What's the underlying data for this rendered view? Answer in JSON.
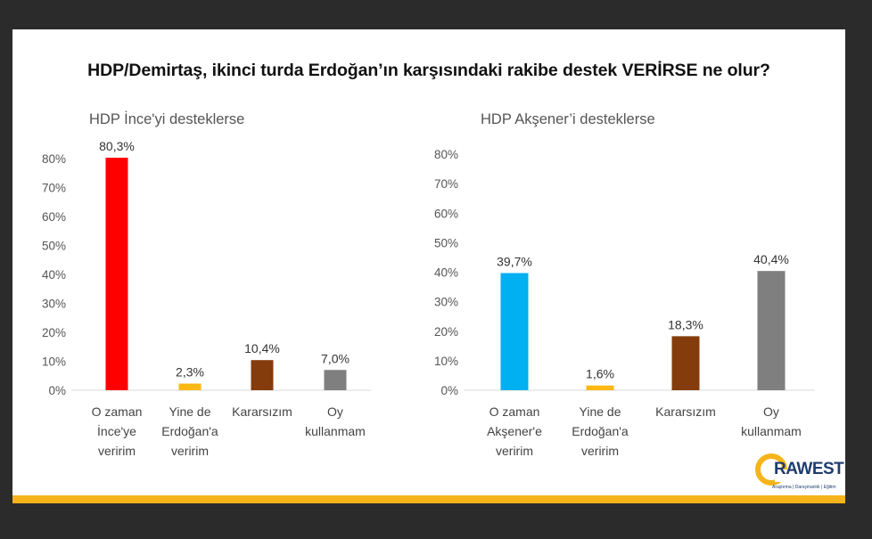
{
  "title": "HDP/Demirtaş, ikinci turda Erdoğan’ın karşısındaki rakibe destek VERİRSE ne olur?",
  "logo": {
    "name": "RAWEST",
    "tagline": "Araştırma | Danışmanlık | Eğitim"
  },
  "colors": {
    "red": "#ff0000",
    "yellow": "#fdb813",
    "brown": "#843c0c",
    "gray": "#7f7f7f",
    "blue": "#00b0f0",
    "band": "#f5b41b"
  },
  "chart_data": [
    {
      "type": "bar",
      "title": "HDP İnce'yi desteklerse",
      "categories": [
        [
          "O zaman",
          "İnce'ye",
          "veririm"
        ],
        [
          "Yine de",
          "Erdoğan'a",
          "veririm"
        ],
        [
          "Kararsızım"
        ],
        [
          "Oy",
          "kullanmam"
        ]
      ],
      "values": [
        80.3,
        2.3,
        10.4,
        7.0
      ],
      "value_labels": [
        "80,3%",
        "2,3%",
        "10,4%",
        "7,0%"
      ],
      "bar_colors": [
        "#ff0000",
        "#fdb813",
        "#843c0c",
        "#7f7f7f"
      ],
      "ylim": [
        0,
        80
      ],
      "yticks": [
        0,
        10,
        20,
        30,
        40,
        50,
        60,
        70,
        80
      ],
      "ytick_labels": [
        "0%",
        "10%",
        "20%",
        "30%",
        "40%",
        "50%",
        "60%",
        "70%",
        "80%"
      ],
      "grid": false,
      "legend": "none"
    },
    {
      "type": "bar",
      "title": "HDP Akşener’i desteklerse",
      "categories": [
        [
          "O zaman",
          "Akşener'e",
          "veririm"
        ],
        [
          "Yine de",
          "Erdoğan'a",
          "veririm"
        ],
        [
          "Kararsızım"
        ],
        [
          "Oy",
          "kullanmam"
        ]
      ],
      "values": [
        39.7,
        1.6,
        18.3,
        40.4
      ],
      "value_labels": [
        "39,7%",
        "1,6%",
        "18,3%",
        "40,4%"
      ],
      "bar_colors": [
        "#00b0f0",
        "#fdb813",
        "#843c0c",
        "#7f7f7f"
      ],
      "ylim": [
        0,
        80
      ],
      "yticks": [
        0,
        10,
        20,
        30,
        40,
        50,
        60,
        70,
        80
      ],
      "ytick_labels": [
        "0%",
        "10%",
        "20%",
        "30%",
        "40%",
        "50%",
        "60%",
        "70%",
        "80%"
      ],
      "grid": false,
      "legend": "none"
    }
  ]
}
